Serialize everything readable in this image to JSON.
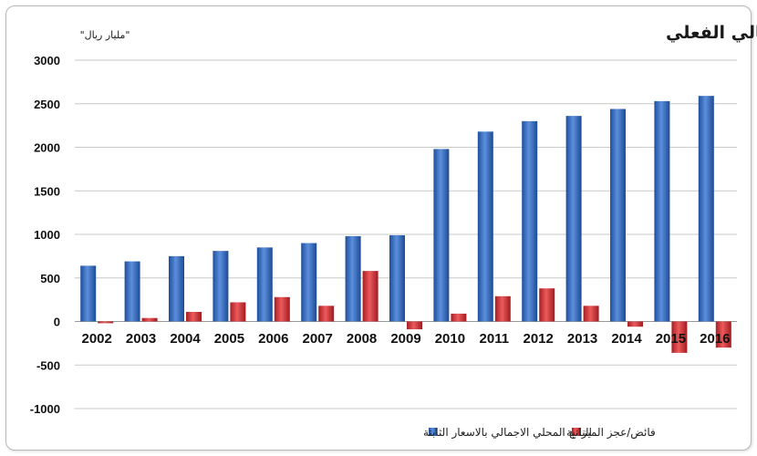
{
  "chart_data": {
    "type": "bar",
    "title": "تطور الفائض/العجز مقارنة بالناتج المحلي الاجمالي الفعلي",
    "unit": "\"مليار ريال\"",
    "categories": [
      "2002",
      "2003",
      "2004",
      "2005",
      "2006",
      "2007",
      "2008",
      "2009",
      "2010",
      "2011",
      "2012",
      "2013",
      "2014",
      "2015",
      "2016"
    ],
    "series": [
      {
        "name": "الناتج المحلي الاجمالي بالاسعار الثابتة",
        "color": "#3a6fc4",
        "values": [
          640,
          690,
          750,
          810,
          850,
          900,
          980,
          990,
          1980,
          2180,
          2300,
          2360,
          2440,
          2530,
          2590
        ]
      },
      {
        "name": "فائض/عجز الميزانية",
        "color": "#d8373a",
        "values": [
          -20,
          40,
          110,
          220,
          280,
          180,
          580,
          -90,
          90,
          290,
          380,
          180,
          -60,
          -360,
          -300
        ]
      }
    ],
    "ylim": [
      -1000,
      3000
    ],
    "yticks": [
      -1000,
      -500,
      0,
      500,
      1000,
      1500,
      2000,
      2500,
      3000
    ],
    "grid": true,
    "legend": "bottom"
  }
}
